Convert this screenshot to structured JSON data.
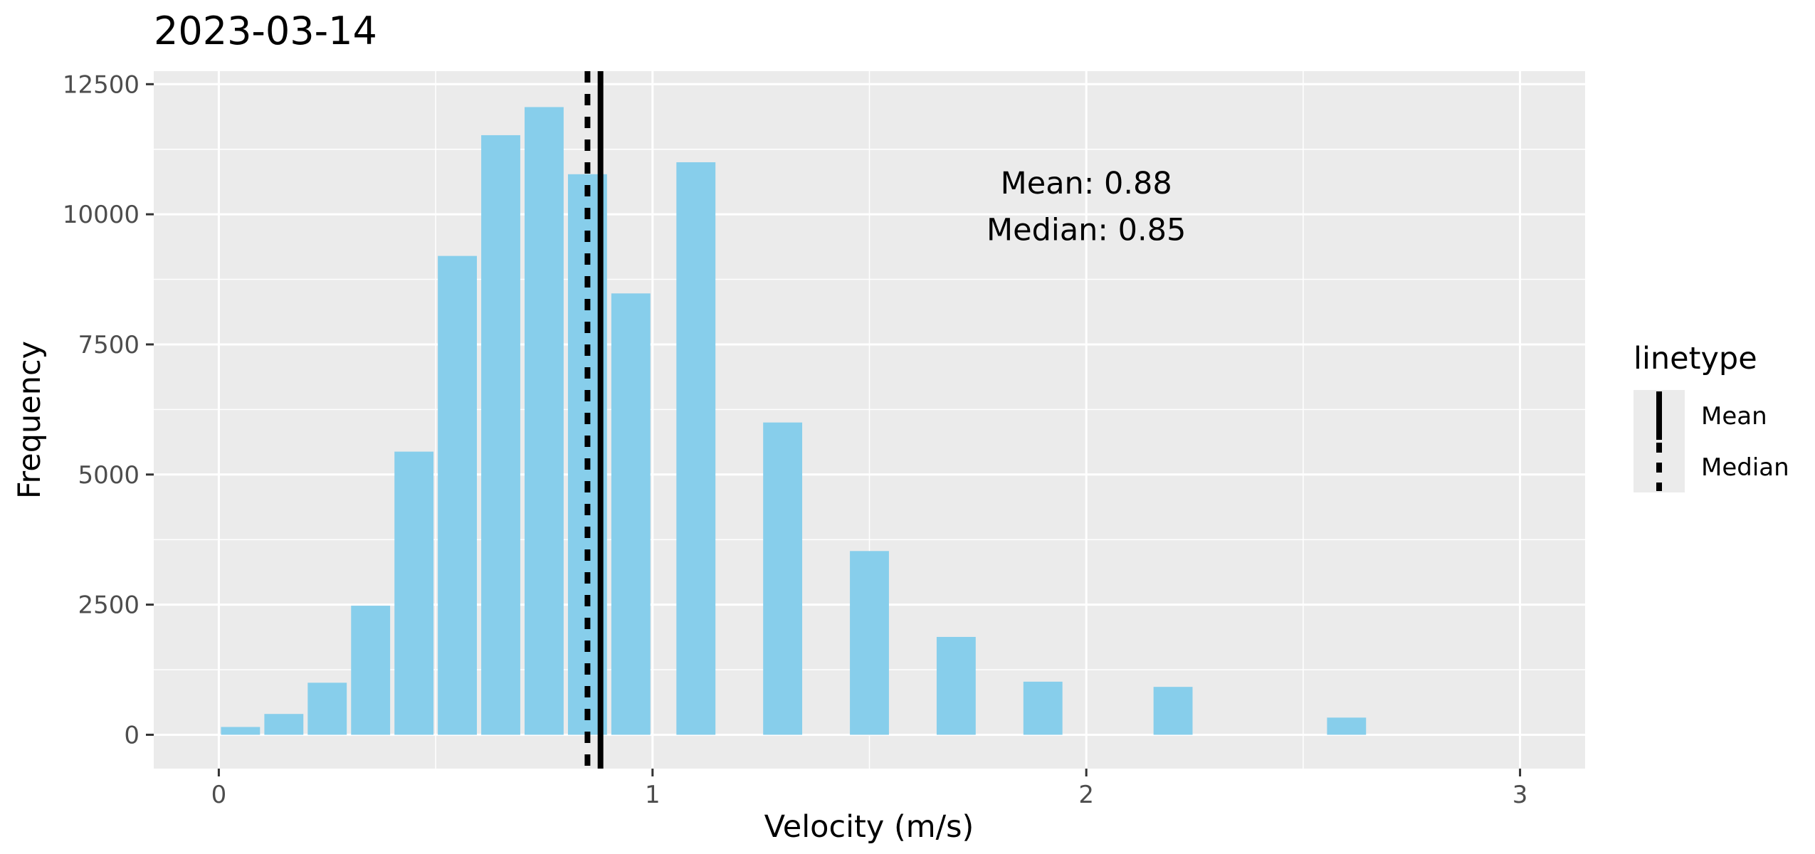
{
  "chart_data": {
    "type": "bar",
    "title": "2023-03-14",
    "xlabel": "Velocity (m/s)",
    "ylabel": "Frequency",
    "xlim": [
      -0.15,
      3.15
    ],
    "ylim": [
      -650,
      12750
    ],
    "x_ticks": [
      0,
      1,
      2,
      3
    ],
    "y_ticks": [
      0,
      2500,
      5000,
      7500,
      10000,
      12500
    ],
    "x_tick_labels": [
      "0",
      "1",
      "2",
      "3"
    ],
    "y_tick_labels": [
      "0",
      "2500",
      "5000",
      "7500",
      "10000",
      "12500"
    ],
    "bar_width": 0.09,
    "bars": [
      {
        "x": 0.05,
        "y": 150
      },
      {
        "x": 0.15,
        "y": 400
      },
      {
        "x": 0.25,
        "y": 1000
      },
      {
        "x": 0.35,
        "y": 2480
      },
      {
        "x": 0.45,
        "y": 5440
      },
      {
        "x": 0.55,
        "y": 9200
      },
      {
        "x": 0.65,
        "y": 11520
      },
      {
        "x": 0.75,
        "y": 12060
      },
      {
        "x": 0.85,
        "y": 10770
      },
      {
        "x": 0.95,
        "y": 8480
      },
      {
        "x": 1.1,
        "y": 11000
      },
      {
        "x": 1.3,
        "y": 6000
      },
      {
        "x": 1.5,
        "y": 3530
      },
      {
        "x": 1.7,
        "y": 1880
      },
      {
        "x": 1.9,
        "y": 1020
      },
      {
        "x": 2.2,
        "y": 920
      },
      {
        "x": 2.6,
        "y": 330
      }
    ],
    "mean": 0.88,
    "median": 0.85,
    "annotations": {
      "mean_text": "Mean: 0.88",
      "median_text": "Median: 0.85",
      "x": 2.0,
      "mean_y": 10400,
      "median_y": 9500
    },
    "legend": {
      "title": "linetype",
      "position": "right",
      "entries": [
        {
          "label": "Mean",
          "style": "solid"
        },
        {
          "label": "Median",
          "style": "dashed"
        }
      ]
    },
    "grid": true,
    "colors": {
      "bar_fill": "#87ceeb",
      "panel_background": "#ebebeb",
      "grid_major": "#ffffff",
      "line": "#000000"
    }
  }
}
